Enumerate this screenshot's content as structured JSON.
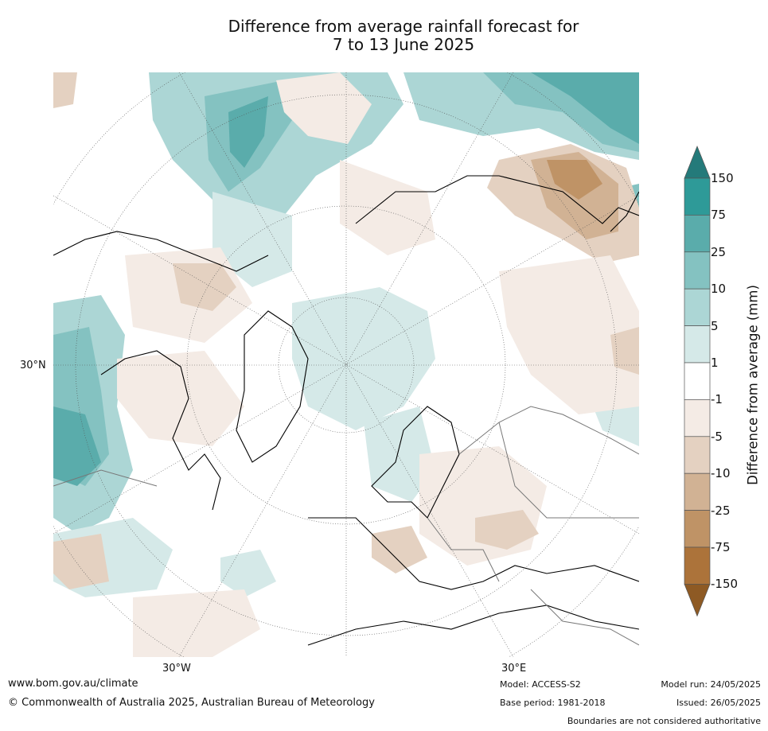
{
  "title": {
    "line1": "Difference from average rainfall forecast for",
    "line2": "7 to 13 June 2025"
  },
  "map": {
    "projection": "north polar stereographic",
    "region": "Northern Hemisphere (Europe, North Atlantic, Greenland, Arctic)",
    "graticule_labels": {
      "left": "30°N",
      "bottom_left": "30°W",
      "bottom_right": "30°E"
    }
  },
  "colorbar": {
    "title": "Difference from average (mm)",
    "extend": "both",
    "levels": [
      "150",
      "75",
      "25",
      "10",
      "5",
      "1",
      "-1",
      "-5",
      "-10",
      "-25",
      "-75",
      "-150"
    ],
    "colors": {
      "over": "#247a7a",
      "bins": [
        "#2e9a98",
        "#5aacab",
        "#84c2c1",
        "#acd6d5",
        "#d5e9e8",
        "#ffffff",
        "#f4ebe5",
        "#e4d1c1",
        "#d1b294",
        "#bf9366",
        "#ac733a"
      ],
      "under": "#8e5a24"
    }
  },
  "footer": {
    "website": "www.bom.gov.au/climate",
    "copyright": "© Commonwealth of Australia 2025, Australian Bureau of Meteorology",
    "model": "Model: ACCESS-S2",
    "base_period": "Base period: 1981-2018",
    "model_run": "Model run: 24/05/2025",
    "issued": "Issued: 26/05/2025",
    "disclaimer": "Boundaries are not considered authoritative"
  }
}
